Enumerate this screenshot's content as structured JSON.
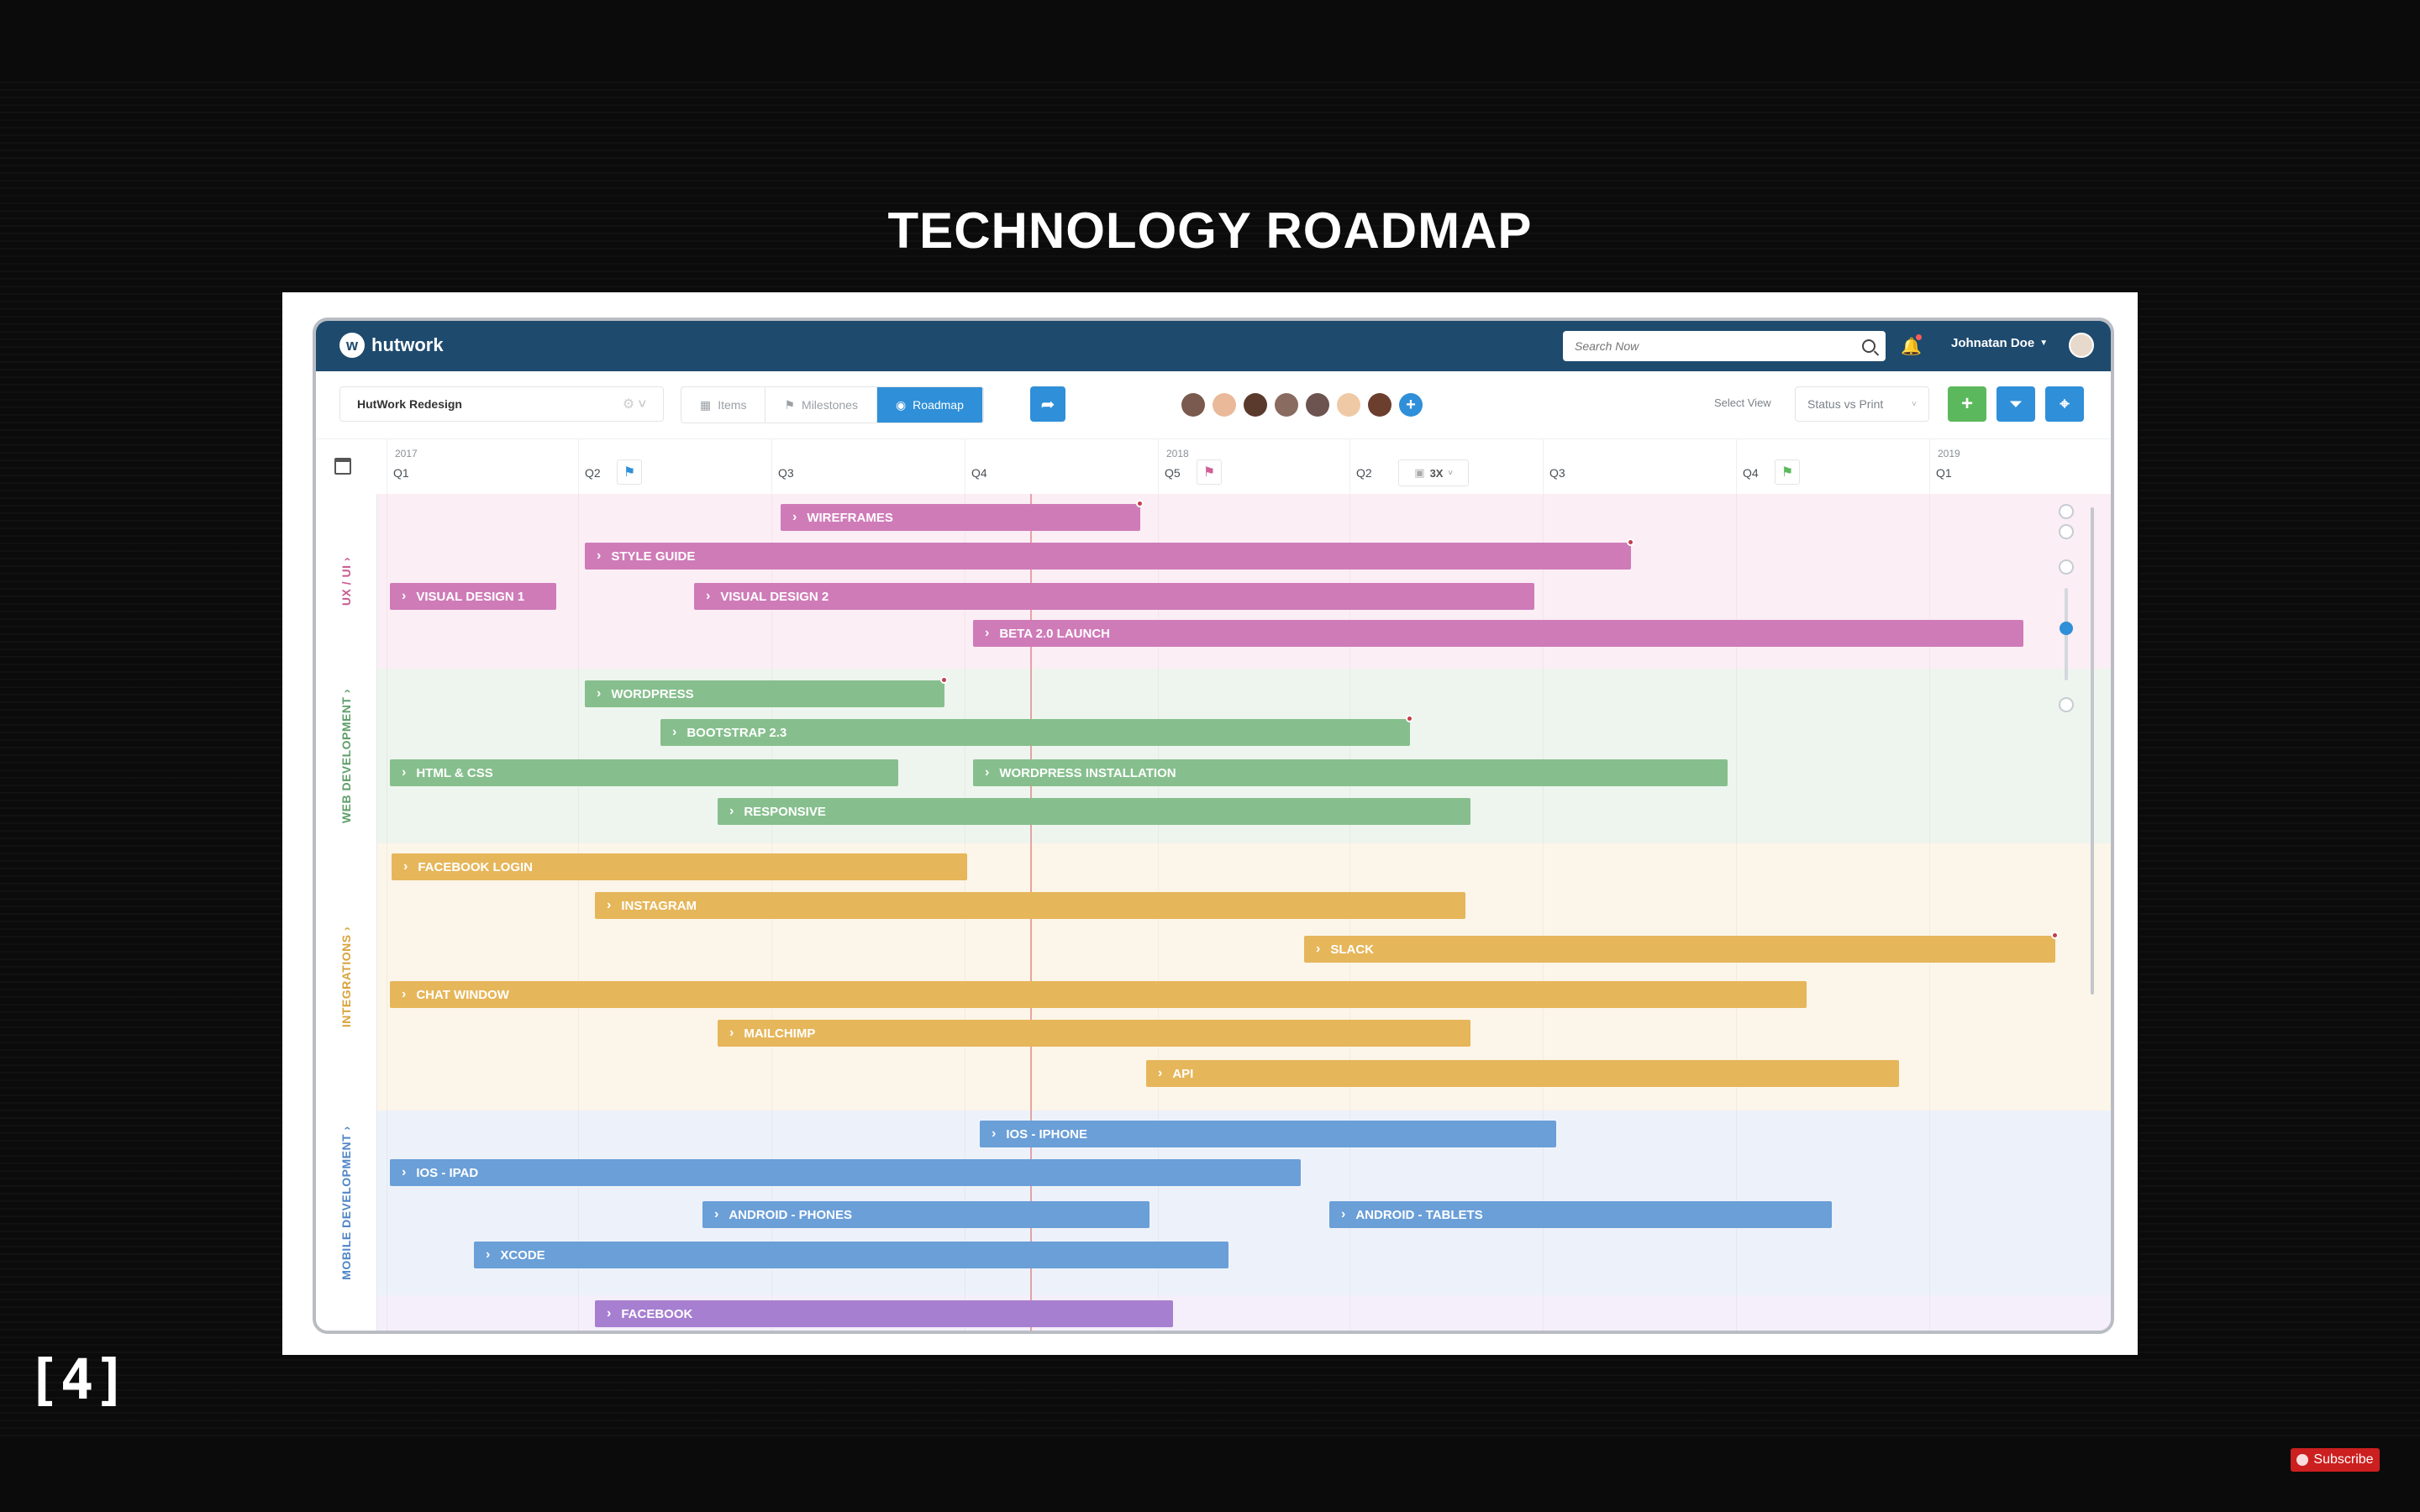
{
  "slide": {
    "title": "TECHNOLOGY ROADMAP",
    "number": "[4]",
    "subscribe": "Subscribe"
  },
  "app": {
    "brand": "hutwork",
    "search_placeholder": "Search Now",
    "user_name": "Johnatan Doe",
    "project": "HutWork Redesign",
    "tabs": [
      {
        "label": "Items",
        "active": false
      },
      {
        "label": "Milestones",
        "active": false
      },
      {
        "label": "Roadmap",
        "active": true
      }
    ],
    "view_label": "Select View",
    "view_value": "Status vs Print",
    "add_label": "+",
    "zoom_value": "3X",
    "team_avatar_colors": [
      "#7a5a4e",
      "#e9b99a",
      "#5b3a2e",
      "#8a6b5f",
      "#6d5450",
      "#efc9a6",
      "#6b3e2d"
    ],
    "colors": {
      "nav": "#1e4a6e",
      "accent": "#2f8fd8",
      "green_button": "#5cb85c",
      "ux_ui": "#cf7bb8",
      "web_development": "#86bf8d",
      "integrations": "#e6b65a",
      "mobile_development": "#6a9fd8",
      "social": "#a77fd1"
    }
  },
  "timeline": {
    "columns": [
      {
        "year": "2017",
        "quarter": "Q1",
        "flag": ""
      },
      {
        "year": "",
        "quarter": "Q2",
        "flag": "blue"
      },
      {
        "year": "",
        "quarter": "Q3",
        "flag": ""
      },
      {
        "year": "",
        "quarter": "Q4",
        "flag": ""
      },
      {
        "year": "2018",
        "quarter": "Q5",
        "flag": "pink"
      },
      {
        "year": "",
        "quarter": "Q2",
        "flag": ""
      },
      {
        "year": "",
        "quarter": "Q3",
        "flag": ""
      },
      {
        "year": "",
        "quarter": "Q4",
        "flag": "green"
      },
      {
        "year": "2019",
        "quarter": "Q1",
        "flag": ""
      }
    ]
  },
  "sections": [
    {
      "label": "UX / UI",
      "color": "#c75a8f",
      "bg": "#fbeef5",
      "bars": [
        {
          "label": "WIREFRAMES",
          "color": "pink",
          "dot": true
        },
        {
          "label": "STYLE GUIDE",
          "color": "pink",
          "dot": true
        },
        {
          "label": "VISUAL DESIGN 1",
          "color": "pink",
          "dot": false
        },
        {
          "label": "VISUAL DESIGN 2",
          "color": "pink",
          "dot": false
        },
        {
          "label": "BETA 2.0 LAUNCH",
          "color": "pink",
          "dot": false
        }
      ]
    },
    {
      "label": "WEB DEVELOPMENT",
      "color": "#5f9e6a",
      "bg": "#eef5ef",
      "bars": [
        {
          "label": "WORDPRESS",
          "color": "green",
          "dot": true
        },
        {
          "label": "BOOTSTRAP 2.3",
          "color": "green",
          "dot": true
        },
        {
          "label": "HTML & CSS",
          "color": "green",
          "dot": false
        },
        {
          "label": "WORDPRESS INSTALLATION",
          "color": "green",
          "dot": false
        },
        {
          "label": "RESPONSIVE",
          "color": "green",
          "dot": false
        }
      ]
    },
    {
      "label": "INTEGRATIONS",
      "color": "#d9a33a",
      "bg": "#fcf5e9",
      "bars": [
        {
          "label": "FACEBOOK LOGIN",
          "color": "yellow",
          "dot": false
        },
        {
          "label": "INSTAGRAM",
          "color": "yellow",
          "dot": false
        },
        {
          "label": "SLACK",
          "color": "yellow",
          "dot": true
        },
        {
          "label": "CHAT WINDOW",
          "color": "yellow",
          "dot": false
        },
        {
          "label": "MAILCHIMP",
          "color": "yellow",
          "dot": false
        },
        {
          "label": "API",
          "color": "yellow",
          "dot": false
        }
      ]
    },
    {
      "label": "MOBILE DEVELOPMENT",
      "color": "#4f86c6",
      "bg": "#edf2fa",
      "bars": [
        {
          "label": "IOS - IPHONE",
          "color": "blue",
          "dot": false
        },
        {
          "label": "IOS - IPAD",
          "color": "blue",
          "dot": false
        },
        {
          "label": "ANDROID - PHONES",
          "color": "blue",
          "dot": false
        },
        {
          "label": "ANDROID - TABLETS",
          "color": "blue",
          "dot": false
        },
        {
          "label": "XCODE",
          "color": "blue",
          "dot": false
        }
      ]
    },
    {
      "label": "",
      "color": "#a77fd1",
      "bg": "#f4effa",
      "bars": [
        {
          "label": "FACEBOOK",
          "color": "purple",
          "dot": false
        }
      ]
    }
  ]
}
